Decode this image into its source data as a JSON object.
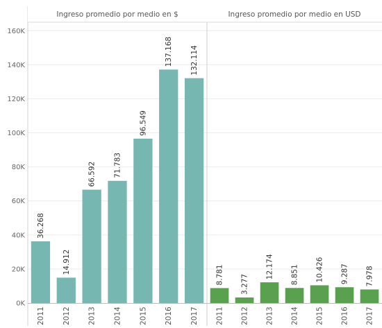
{
  "chart_data": [
    {
      "type": "bar",
      "title": "Ingreso promedio por medio en $",
      "categories": [
        "2011",
        "2012",
        "2013",
        "2014",
        "2015",
        "2016",
        "2017"
      ],
      "values": [
        36268,
        14912,
        66592,
        71783,
        96549,
        137168,
        132114
      ],
      "value_labels": [
        "36.268",
        "14.912",
        "66.592",
        "71.783",
        "96.549",
        "137.168",
        "132.114"
      ],
      "color": "#76b7b2",
      "ylim": [
        0,
        165000
      ],
      "yticks": [
        0,
        20000,
        40000,
        60000,
        80000,
        100000,
        120000,
        140000,
        160000
      ],
      "ytick_labels": [
        "0K",
        "20K",
        "40K",
        "60K",
        "80K",
        "100K",
        "120K",
        "140K",
        "160K"
      ],
      "grid": true
    },
    {
      "type": "bar",
      "title": "Ingreso promedio por medio en USD",
      "categories": [
        "2011",
        "2012",
        "2013",
        "2014",
        "2015",
        "2016",
        "2017"
      ],
      "values": [
        8781,
        3277,
        12174,
        8851,
        10426,
        9287,
        7978
      ],
      "value_labels": [
        "8.781",
        "3.277",
        "12.174",
        "8.851",
        "10.426",
        "9.287",
        "7.978"
      ],
      "color": "#59a14f",
      "ylim": [
        0,
        165000
      ],
      "grid": true
    }
  ]
}
